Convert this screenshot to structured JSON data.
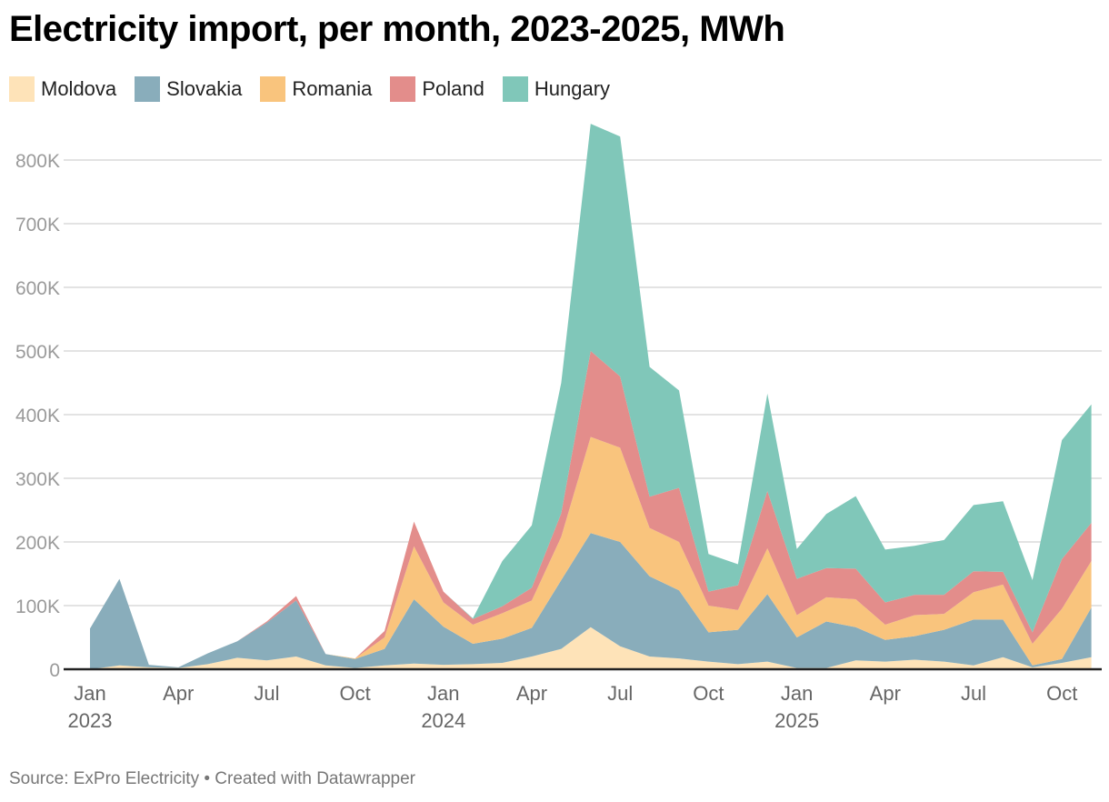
{
  "chart_data": {
    "type": "area",
    "stacked": true,
    "title": "Electricity import, per month, 2023-2025, MWh",
    "xlabel": "",
    "ylabel": "",
    "ylim": [
      0,
      880000
    ],
    "yticks": [
      0,
      100000,
      200000,
      300000,
      400000,
      500000,
      600000,
      700000,
      800000
    ],
    "ytick_labels": [
      "0",
      "100K",
      "200K",
      "300K",
      "400K",
      "500K",
      "600K",
      "700K",
      "800K"
    ],
    "xticks": [
      {
        "index": 0,
        "label": "Jan",
        "sub": "2023"
      },
      {
        "index": 3,
        "label": "Apr",
        "sub": ""
      },
      {
        "index": 6,
        "label": "Jul",
        "sub": ""
      },
      {
        "index": 9,
        "label": "Oct",
        "sub": ""
      },
      {
        "index": 12,
        "label": "Jan",
        "sub": "2024"
      },
      {
        "index": 15,
        "label": "Apr",
        "sub": ""
      },
      {
        "index": 18,
        "label": "Jul",
        "sub": ""
      },
      {
        "index": 21,
        "label": "Oct",
        "sub": ""
      },
      {
        "index": 24,
        "label": "Jan",
        "sub": "2025"
      },
      {
        "index": 27,
        "label": "Apr",
        "sub": ""
      },
      {
        "index": 30,
        "label": "Jul",
        "sub": ""
      },
      {
        "index": 33,
        "label": "Oct",
        "sub": ""
      }
    ],
    "x": [
      "2023-01",
      "2023-02",
      "2023-03",
      "2023-04",
      "2023-05",
      "2023-06",
      "2023-07",
      "2023-08",
      "2023-09",
      "2023-10",
      "2023-11",
      "2023-12",
      "2024-01",
      "2024-02",
      "2024-03",
      "2024-04",
      "2024-05",
      "2024-06",
      "2024-07",
      "2024-08",
      "2024-09",
      "2024-10",
      "2024-11",
      "2024-12",
      "2025-01",
      "2025-02",
      "2025-03",
      "2025-04",
      "2025-05",
      "2025-06",
      "2025-07",
      "2025-08",
      "2025-09",
      "2025-10",
      "2025-11"
    ],
    "grid": true,
    "legend": "top-left",
    "series": [
      {
        "name": "Moldova",
        "color": "#fee3b8",
        "values": [
          0,
          6000,
          3000,
          2000,
          8000,
          18000,
          14000,
          20000,
          6000,
          2000,
          6000,
          9000,
          7000,
          8000,
          10000,
          20000,
          32000,
          66000,
          36000,
          20000,
          17000,
          12000,
          8000,
          12000,
          2000,
          2000,
          14000,
          12000,
          15000,
          12000,
          6000,
          19000,
          3000,
          10000,
          19000
        ]
      },
      {
        "name": "Slovakia",
        "color": "#89adbb",
        "values": [
          64000,
          136000,
          4000,
          1000,
          17000,
          26000,
          59000,
          88000,
          18000,
          14000,
          26000,
          101000,
          60000,
          32000,
          38000,
          45000,
          108000,
          148000,
          164000,
          126000,
          107000,
          46000,
          54000,
          106000,
          48000,
          73000,
          52000,
          34000,
          37000,
          50000,
          72000,
          59000,
          3000,
          6000,
          78000
        ]
      },
      {
        "name": "Romania",
        "color": "#f9c47d",
        "values": [
          0,
          0,
          0,
          0,
          0,
          0,
          0,
          0,
          0,
          1000,
          18000,
          83000,
          38000,
          30000,
          40000,
          43000,
          68000,
          151000,
          148000,
          76000,
          76000,
          42000,
          31000,
          72000,
          35000,
          38000,
          44000,
          24000,
          33000,
          25000,
          43000,
          55000,
          34000,
          79000,
          73000
        ]
      },
      {
        "name": "Poland",
        "color": "#e38d8b",
        "values": [
          0,
          0,
          0,
          0,
          0,
          0,
          2000,
          7000,
          0,
          0,
          10000,
          39000,
          17000,
          9000,
          11000,
          20000,
          37000,
          135000,
          112000,
          49000,
          85000,
          22000,
          39000,
          90000,
          57000,
          46000,
          48000,
          35000,
          32000,
          30000,
          33000,
          20000,
          18000,
          78000,
          60000
        ]
      },
      {
        "name": "Hungary",
        "color": "#80c7b9",
        "values": [
          0,
          0,
          0,
          0,
          0,
          0,
          0,
          0,
          0,
          0,
          0,
          0,
          0,
          1000,
          71000,
          98000,
          205000,
          357000,
          377000,
          204000,
          153000,
          59000,
          33000,
          153000,
          47000,
          85000,
          114000,
          83000,
          77000,
          86000,
          104000,
          111000,
          82000,
          187000,
          186000
        ]
      }
    ],
    "source": "Source: ExPro Electricity • Created with Datawrapper"
  }
}
